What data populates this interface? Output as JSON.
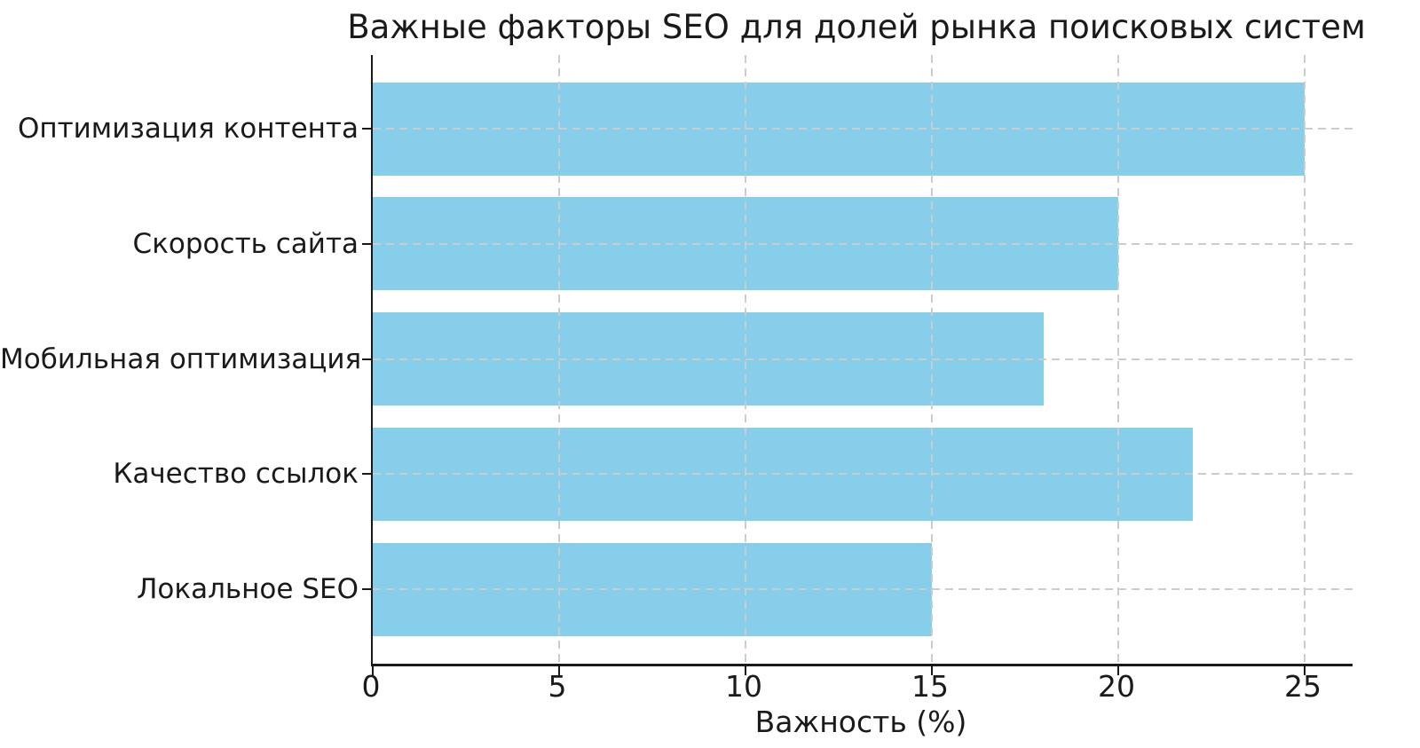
{
  "chart_data": {
    "type": "bar",
    "orientation": "horizontal",
    "title": "Важные факторы SEO для долей рынка поисковых систем",
    "categories": [
      "Оптимизация контента",
      "Скорость сайта",
      "Мобильная оптимизация",
      "Качество ссылок",
      "Локальное SEO"
    ],
    "values": [
      25,
      20,
      18,
      22,
      15
    ],
    "xlabel": "Важность (%)",
    "ylabel": "",
    "x_ticks": [
      0,
      5,
      10,
      15,
      20,
      25
    ],
    "xlim": [
      0,
      26.3
    ],
    "grid": true,
    "grid_style": "dashed",
    "legend": "none",
    "bar_color": "#87CEEB",
    "grid_color": "#cccccc",
    "text_color": "#1a1a1a",
    "background_color": "#ffffff"
  }
}
